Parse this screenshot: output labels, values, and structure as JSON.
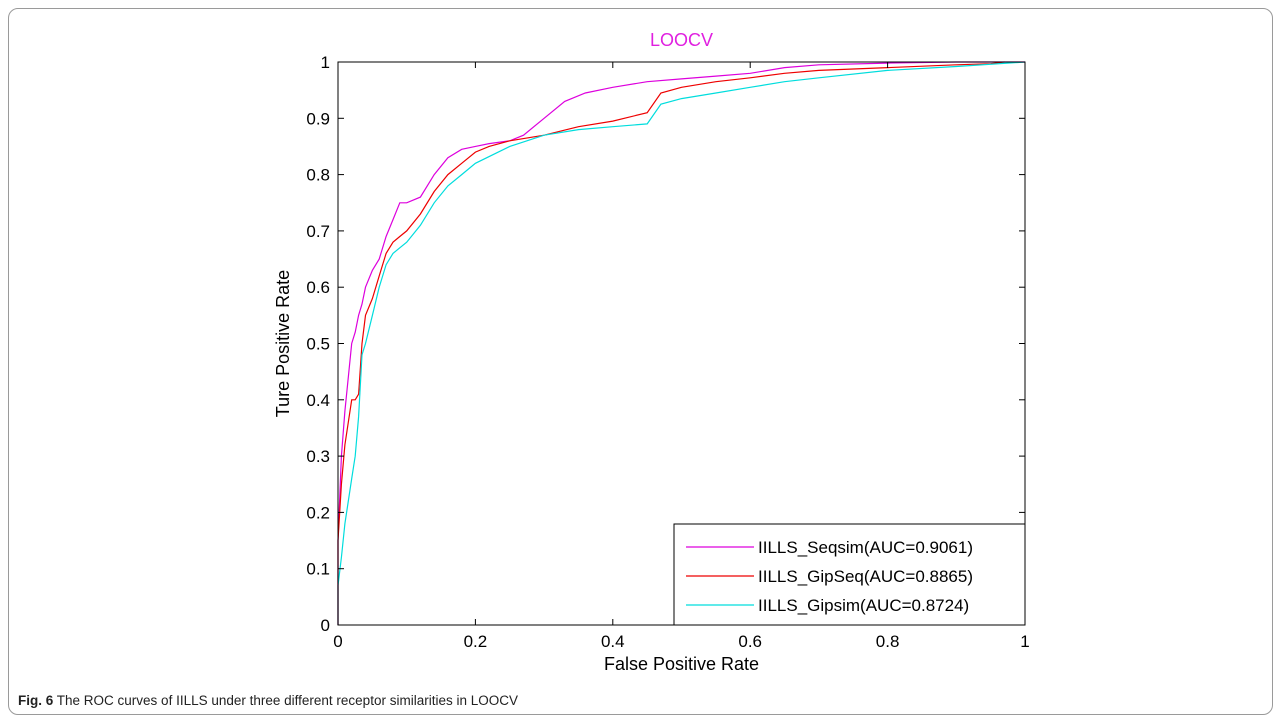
{
  "caption": {
    "label": "Fig. 6",
    "text": "The ROC curves of IILLS under three different receptor similarities in LOOCV"
  },
  "colors": {
    "title": "#e020e0",
    "axis": "#000000",
    "background": "#ffffff"
  },
  "chart_data": {
    "type": "line",
    "title": "LOOCV",
    "xlabel": "False Positive Rate",
    "ylabel": "Ture Positive Rate",
    "xlim": [
      0,
      1
    ],
    "ylim": [
      0,
      1
    ],
    "xticks": [
      "0",
      "0.2",
      "0.4",
      "0.6",
      "0.8",
      "1"
    ],
    "yticks": [
      "0",
      "0.1",
      "0.2",
      "0.3",
      "0.4",
      "0.5",
      "0.6",
      "0.7",
      "0.8",
      "0.9",
      "1"
    ],
    "grid": false,
    "legend_position": "bottom-right",
    "series": [
      {
        "name": "IILLS_Seqsim(AUC=0.9061)",
        "color": "#dd00dd",
        "x": [
          0,
          0,
          0.005,
          0.01,
          0.015,
          0.02,
          0.025,
          0.03,
          0.035,
          0.04,
          0.05,
          0.06,
          0.07,
          0.08,
          0.09,
          0.1,
          0.12,
          0.14,
          0.16,
          0.18,
          0.2,
          0.22,
          0.25,
          0.27,
          0.3,
          0.33,
          0.36,
          0.4,
          0.45,
          0.5,
          0.55,
          0.6,
          0.65,
          0.7,
          0.8,
          0.9,
          1.0
        ],
        "y": [
          0,
          0.15,
          0.3,
          0.38,
          0.44,
          0.5,
          0.52,
          0.55,
          0.57,
          0.6,
          0.63,
          0.65,
          0.69,
          0.72,
          0.75,
          0.75,
          0.76,
          0.8,
          0.83,
          0.845,
          0.85,
          0.855,
          0.86,
          0.87,
          0.9,
          0.93,
          0.945,
          0.955,
          0.965,
          0.97,
          0.975,
          0.98,
          0.99,
          0.995,
          0.998,
          1.0,
          1.0
        ]
      },
      {
        "name": "IILLS_GipSeq(AUC=0.8865)",
        "color": "#ee0000",
        "x": [
          0,
          0,
          0.005,
          0.01,
          0.015,
          0.02,
          0.025,
          0.03,
          0.035,
          0.04,
          0.05,
          0.06,
          0.07,
          0.08,
          0.09,
          0.1,
          0.12,
          0.14,
          0.16,
          0.18,
          0.2,
          0.22,
          0.25,
          0.3,
          0.35,
          0.4,
          0.45,
          0.47,
          0.5,
          0.55,
          0.6,
          0.65,
          0.7,
          0.8,
          0.9,
          0.95,
          0.97
        ],
        "y": [
          0,
          0.15,
          0.25,
          0.32,
          0.36,
          0.4,
          0.4,
          0.41,
          0.5,
          0.55,
          0.58,
          0.62,
          0.66,
          0.68,
          0.69,
          0.7,
          0.73,
          0.77,
          0.8,
          0.82,
          0.84,
          0.85,
          0.86,
          0.87,
          0.885,
          0.895,
          0.91,
          0.945,
          0.955,
          0.965,
          0.972,
          0.98,
          0.985,
          0.99,
          0.995,
          0.997,
          1.0
        ]
      },
      {
        "name": "IILLS_Gipsim(AUC=0.8724)",
        "color": "#00dddd",
        "x": [
          0,
          0,
          0.005,
          0.01,
          0.02,
          0.025,
          0.03,
          0.035,
          0.04,
          0.05,
          0.06,
          0.07,
          0.08,
          0.09,
          0.1,
          0.12,
          0.14,
          0.16,
          0.18,
          0.2,
          0.25,
          0.3,
          0.35,
          0.4,
          0.45,
          0.47,
          0.5,
          0.55,
          0.6,
          0.65,
          0.7,
          0.8,
          0.9,
          1.0
        ],
        "y": [
          0,
          0.07,
          0.12,
          0.18,
          0.26,
          0.3,
          0.37,
          0.48,
          0.5,
          0.55,
          0.6,
          0.64,
          0.66,
          0.67,
          0.68,
          0.71,
          0.75,
          0.78,
          0.8,
          0.82,
          0.85,
          0.87,
          0.88,
          0.885,
          0.89,
          0.925,
          0.935,
          0.945,
          0.955,
          0.965,
          0.972,
          0.985,
          0.992,
          1.0
        ]
      }
    ]
  }
}
